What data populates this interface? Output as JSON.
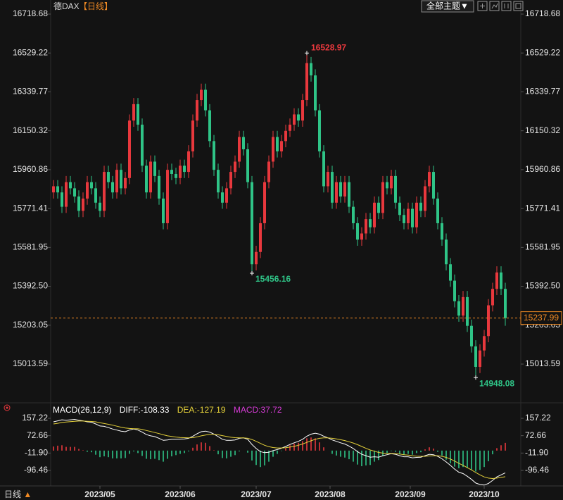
{
  "header": {
    "symbol": "德DAX",
    "period": "【日线】",
    "theme_button": "全部主题▼"
  },
  "footer": {
    "period": "日线",
    "arrow": "▲"
  },
  "chart_data": [
    {
      "type": "candlestick",
      "up_color": "#e8383d",
      "down_color": "#2fc487",
      "last_price_color": "#f08a24",
      "xlim": [
        -1,
        108
      ],
      "xticks": [
        {
          "value": 11,
          "label": "2023/05"
        },
        {
          "value": 30,
          "label": "2023/06"
        },
        {
          "value": 48,
          "label": "2023/07"
        },
        {
          "value": 65.5,
          "label": "2023/08"
        },
        {
          "value": 84.5,
          "label": "2023/09"
        },
        {
          "value": 102,
          "label": "2023/10"
        }
      ],
      "ylim": [
        14831.8,
        16759.9
      ],
      "yticks": [
        16718.68,
        16529.22,
        16339.77,
        16150.32,
        15960.86,
        15771.41,
        15581.95,
        {
          "value": 15392.5,
          "label": "15392.50"
        },
        15203.05,
        15013.59
      ],
      "open": [
        15850,
        15880,
        15850,
        15780,
        15900,
        15870,
        15830,
        15760,
        15820,
        15900,
        15870,
        15800,
        15760,
        15950,
        15900,
        15850,
        15960,
        15870,
        15920,
        16200,
        16280,
        16180,
        15980,
        15850,
        16000,
        15930,
        15820,
        15700,
        15960,
        15940,
        15920,
        15980,
        15950,
        16050,
        16200,
        16300,
        16350,
        16250,
        16100,
        15960,
        15850,
        15800,
        15870,
        15950,
        16000,
        16120,
        16060,
        15900,
        15500,
        15560,
        15700,
        15900,
        16000,
        16120,
        16050,
        16100,
        16150,
        16180,
        16230,
        16200,
        16300,
        16480,
        16420,
        16250,
        16050,
        15880,
        15950,
        15800,
        15900,
        15830,
        15900,
        15780,
        15700,
        15620,
        15650,
        15720,
        15680,
        15800,
        15750,
        15900,
        15870,
        15930,
        15800,
        15740,
        15700,
        15770,
        15680,
        15800,
        15760,
        15880,
        15950,
        15820,
        15700,
        15620,
        15500,
        15420,
        15320,
        15250,
        15340,
        15200,
        15100,
        15000,
        15080,
        15150,
        15300,
        15380,
        15460,
        15380
      ],
      "high": [
        15910,
        15910,
        15880,
        15930,
        15930,
        15900,
        15860,
        15850,
        15930,
        15930,
        15900,
        15830,
        15980,
        15980,
        15930,
        15990,
        15990,
        15950,
        16230,
        16310,
        16310,
        16210,
        16010,
        16030,
        16030,
        15960,
        15850,
        15990,
        15990,
        15970,
        16010,
        16010,
        16080,
        16230,
        16330,
        16380,
        16380,
        16280,
        16130,
        15990,
        15880,
        15900,
        15980,
        16030,
        16150,
        16150,
        16090,
        15930,
        15590,
        15730,
        15930,
        16030,
        16150,
        16150,
        16130,
        16180,
        16210,
        16260,
        16260,
        16330,
        16528.97,
        16510,
        16450,
        16280,
        16080,
        15980,
        15980,
        15930,
        15930,
        15930,
        15930,
        15810,
        15730,
        15680,
        15750,
        15750,
        15830,
        15830,
        15930,
        15930,
        15960,
        15960,
        15830,
        15770,
        15800,
        15800,
        15830,
        15830,
        15910,
        15980,
        15980,
        15850,
        15730,
        15650,
        15530,
        15450,
        15350,
        15370,
        15370,
        15230,
        15130,
        15110,
        15180,
        15330,
        15410,
        15490,
        15490,
        15410
      ],
      "low": [
        15820,
        15820,
        15750,
        15750,
        15840,
        15800,
        15730,
        15730,
        15790,
        15840,
        15770,
        15730,
        15730,
        15870,
        15820,
        15820,
        15840,
        15840,
        15890,
        16170,
        16150,
        15950,
        15820,
        15820,
        15900,
        15790,
        15670,
        15670,
        15910,
        15890,
        15890,
        15920,
        15920,
        16020,
        16170,
        16270,
        16220,
        16070,
        15930,
        15820,
        15770,
        15770,
        15840,
        15920,
        15970,
        16030,
        15870,
        15456.16,
        15470,
        15530,
        15670,
        15870,
        15970,
        16020,
        16020,
        16070,
        16120,
        16150,
        16170,
        16170,
        16270,
        16390,
        16220,
        16020,
        15850,
        15850,
        15770,
        15770,
        15800,
        15800,
        15750,
        15670,
        15590,
        15590,
        15620,
        15650,
        15650,
        15720,
        15720,
        15840,
        15840,
        15770,
        15710,
        15670,
        15670,
        15650,
        15650,
        15730,
        15730,
        15850,
        15790,
        15670,
        15590,
        15470,
        15390,
        15290,
        15220,
        15220,
        15170,
        15070,
        14948.08,
        14970,
        15050,
        15120,
        15270,
        15350,
        15350,
        15200
      ],
      "close": [
        15880,
        15850,
        15780,
        15900,
        15870,
        15830,
        15760,
        15820,
        15900,
        15870,
        15800,
        15760,
        15950,
        15900,
        15850,
        15960,
        15870,
        15920,
        16200,
        16280,
        16180,
        15980,
        15850,
        16000,
        15930,
        15820,
        15700,
        15960,
        15940,
        15920,
        15980,
        15950,
        16050,
        16200,
        16300,
        16350,
        16250,
        16100,
        15960,
        15850,
        15800,
        15870,
        15950,
        16000,
        16120,
        16060,
        15900,
        15500,
        15560,
        15700,
        15900,
        16000,
        16120,
        16050,
        16100,
        16150,
        16180,
        16230,
        16200,
        16300,
        16480,
        16420,
        16250,
        16050,
        15880,
        15950,
        15800,
        15900,
        15830,
        15900,
        15780,
        15700,
        15620,
        15650,
        15720,
        15680,
        15800,
        15750,
        15900,
        15870,
        15930,
        15800,
        15740,
        15700,
        15770,
        15680,
        15800,
        15760,
        15880,
        15950,
        15820,
        15700,
        15620,
        15500,
        15420,
        15320,
        15250,
        15340,
        15200,
        15100,
        15000,
        15080,
        15150,
        15300,
        15380,
        15460,
        15380,
        15237.99
      ]
    },
    {
      "type": "macd",
      "title": "MACD(26,12,9)",
      "diff_label": "DIFF:",
      "dea_label": "DEA:",
      "macd_label": "MACD:",
      "diff_color": "#ffffff",
      "dea_color": "#e5d13a",
      "macd_color": "#d63bd6",
      "up_color": "#e8383d",
      "down_color": "#2fc487",
      "xlim": [
        -1,
        108
      ],
      "ylim": [
        -172,
        195
      ],
      "yticks": [
        157.22,
        72.66,
        {
          "value": -11.9,
          "label": "-11.90"
        },
        -96.46
      ],
      "diff": [
        140,
        145,
        150,
        148,
        150,
        152,
        148,
        145,
        140,
        138,
        130,
        120,
        118,
        112,
        105,
        100,
        95,
        92,
        100,
        105,
        100,
        90,
        78,
        72,
        68,
        60,
        50,
        52,
        55,
        55,
        56,
        57,
        60,
        70,
        82,
        92,
        95,
        90,
        80,
        68,
        55,
        50,
        50,
        52,
        60,
        62,
        55,
        30,
        10,
        -5,
        -10,
        -8,
        0,
        5,
        12,
        20,
        30,
        38,
        45,
        55,
        70,
        80,
        85,
        80,
        70,
        62,
        52,
        45,
        38,
        32,
        22,
        10,
        -5,
        -18,
        -25,
        -32,
        -30,
        -32,
        -25,
        -20,
        -15,
        -18,
        -25,
        -30,
        -30,
        -35,
        -33,
        -32,
        -25,
        -18,
        -20,
        -28,
        -40,
        -55,
        -72,
        -90,
        -105,
        -112,
        -125,
        -140,
        -158,
        -165,
        -168,
        -160,
        -145,
        -128,
        -118,
        -108.33
      ],
      "dea": [
        130,
        133,
        137,
        139,
        141,
        143,
        144,
        144,
        143,
        142,
        140,
        136,
        132,
        128,
        124,
        119,
        114,
        110,
        108,
        107,
        106,
        103,
        98,
        93,
        88,
        83,
        77,
        72,
        69,
        66,
        64,
        63,
        62,
        63,
        67,
        72,
        76,
        79,
        79,
        77,
        73,
        69,
        65,
        63,
        62,
        62,
        60,
        54,
        45,
        35,
        26,
        19,
        15,
        13,
        13,
        14,
        17,
        21,
        26,
        32,
        40,
        48,
        55,
        60,
        62,
        62,
        60,
        57,
        53,
        49,
        43,
        37,
        29,
        20,
        11,
        3,
        -3,
        -9,
        -12,
        -14,
        -14,
        -15,
        -17,
        -20,
        -22,
        -25,
        -27,
        -28,
        -28,
        -26,
        -25,
        -25,
        -28,
        -33,
        -41,
        -51,
        -62,
        -72,
        -83,
        -94,
        -107,
        -118,
        -128,
        -134,
        -136,
        -134,
        -131,
        -127.19
      ],
      "hist": [
        20,
        24,
        26,
        18,
        18,
        18,
        8,
        2,
        -6,
        -8,
        -20,
        -32,
        -28,
        -32,
        -38,
        -38,
        -38,
        -36,
        -16,
        -4,
        -12,
        -26,
        -40,
        -42,
        -40,
        -46,
        -54,
        -40,
        -28,
        -22,
        -16,
        -12,
        -4,
        14,
        30,
        40,
        38,
        22,
        2,
        -18,
        -36,
        -38,
        -30,
        -22,
        -4,
        0,
        -10,
        -48,
        -70,
        -80,
        -72,
        -54,
        -30,
        -16,
        -2,
        12,
        26,
        34,
        38,
        46,
        60,
        64,
        60,
        40,
        16,
        0,
        -16,
        -24,
        -30,
        -34,
        -42,
        -54,
        -68,
        -76,
        -72,
        -70,
        -54,
        -46,
        -26,
        -12,
        -2,
        -6,
        -16,
        -20,
        -16,
        -20,
        -12,
        -8,
        6,
        16,
        10,
        -6,
        -24,
        -44,
        -62,
        -78,
        -86,
        -80,
        -84,
        -92,
        -102,
        -94,
        -80,
        -52,
        -18,
        12,
        26,
        37.72
      ]
    }
  ]
}
